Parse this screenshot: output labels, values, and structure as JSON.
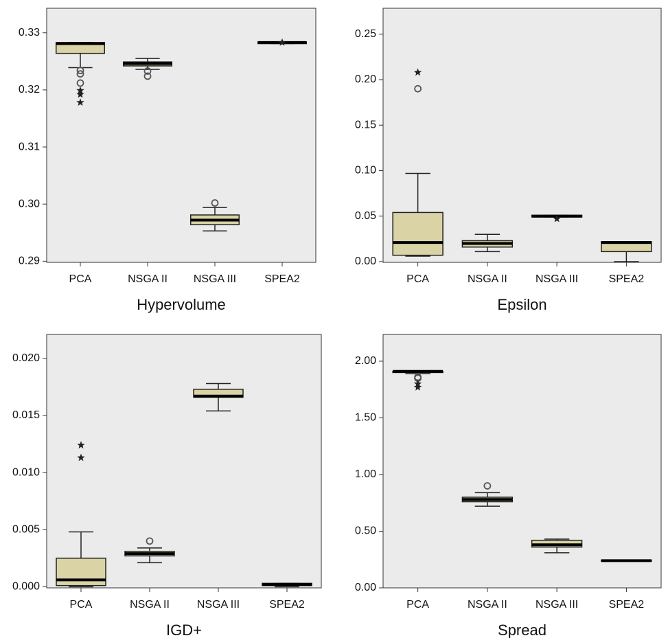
{
  "chart_data": [
    {
      "type": "box",
      "xlabel": "Hypervolume",
      "categories": [
        "PCA",
        "NSGA II",
        "NSGA III",
        "SPEA2"
      ],
      "color": "#d9d3a6",
      "ylim": [
        0.2898,
        0.3343
      ],
      "yticks": [
        0.29,
        {
          "value": 0.3,
          "label": "0.30"
        },
        0.31,
        0.32,
        0.33
      ],
      "boxes": [
        {
          "min": 0.3239,
          "q1": 0.3264,
          "median": 0.3281,
          "q3": 0.3283,
          "max": 0.3283,
          "outliers": [
            0.3234,
            0.3228,
            0.3212
          ],
          "extremes": [
            0.3199,
            0.3192,
            0.3178
          ]
        },
        {
          "min": 0.3236,
          "q1": 0.3242,
          "median": 0.3246,
          "q3": 0.3249,
          "max": 0.3255,
          "outliers": [
            0.3233,
            0.3224
          ]
        },
        {
          "min": 0.2953,
          "q1": 0.2964,
          "median": 0.2972,
          "q3": 0.2981,
          "max": 0.2994,
          "outliers": [
            0.3002
          ]
        },
        {
          "min": 0.3281,
          "q1": 0.3281,
          "median": 0.3283,
          "q3": 0.3284,
          "max": 0.3284,
          "extremes": [
            0.3283
          ]
        }
      ]
    },
    {
      "type": "box",
      "xlabel": "Epsilon",
      "categories": [
        "PCA",
        "NSGA II",
        "NSGA III",
        "SPEA2"
      ],
      "color": "#d9d3a6",
      "ylim": [
        -0.0008,
        0.2785
      ],
      "yticks": [
        {
          "value": 0,
          "label": "0.00"
        },
        0.05,
        {
          "value": 0.1,
          "label": "0.10"
        },
        0.15,
        {
          "value": 0.2,
          "label": "0.20"
        },
        0.25
      ],
      "boxes": [
        {
          "min": 0.006,
          "q1": 0.007,
          "median": 0.021,
          "q3": 0.054,
          "max": 0.097,
          "outliers": [
            0.19
          ],
          "extremes": [
            0.208
          ]
        },
        {
          "min": 0.011,
          "q1": 0.016,
          "median": 0.02,
          "q3": 0.023,
          "max": 0.03
        },
        {
          "min": 0.049,
          "q1": 0.049,
          "median": 0.05,
          "q3": 0.051,
          "max": 0.051,
          "extremes": [
            0.047
          ]
        },
        {
          "min": 0,
          "q1": 0.011,
          "median": 0.021,
          "q3": 0.022,
          "max": 0.022
        }
      ]
    },
    {
      "type": "box",
      "xlabel": "IGD+",
      "categories": [
        "PCA",
        "NSGA II",
        "NSGA III",
        "SPEA2"
      ],
      "color": "#d9d3a6",
      "ylim": [
        -0.0001,
        0.0221
      ],
      "yticks": [
        {
          "value": 0,
          "label": "0.000"
        },
        {
          "value": 0.005,
          "label": "0.005"
        },
        {
          "value": 0.01,
          "label": "0.010"
        },
        {
          "value": 0.015,
          "label": "0.015"
        },
        {
          "value": 0.02,
          "label": "0.020"
        }
      ],
      "boxes": [
        {
          "min": 0,
          "q1": 0.0001,
          "median": 0.0006,
          "q3": 0.0025,
          "max": 0.0048,
          "extremes": [
            0.0124,
            0.0113
          ]
        },
        {
          "min": 0.0021,
          "q1": 0.0027,
          "median": 0.0029,
          "q3": 0.0031,
          "max": 0.0034,
          "outliers": [
            0.004
          ]
        },
        {
          "min": 0.0154,
          "q1": 0.0166,
          "median": 0.0167,
          "q3": 0.0173,
          "max": 0.0178
        },
        {
          "min": 0,
          "q1": 0.0001,
          "median": 0.0002,
          "q3": 0.0003,
          "max": 0.0003
        }
      ]
    },
    {
      "type": "box",
      "xlabel": "Spread",
      "categories": [
        "PCA",
        "NSGA II",
        "NSGA III",
        "SPEA2"
      ],
      "color": "#d9d3a6",
      "ylim": [
        0,
        2.236
      ],
      "yticks": [
        {
          "value": 0,
          "label": "0.00"
        },
        {
          "value": 0.5,
          "label": "0.50"
        },
        {
          "value": 1,
          "label": "1.00"
        },
        {
          "value": 1.5,
          "label": "1.50"
        },
        {
          "value": 2,
          "label": "2.00"
        }
      ],
      "boxes": [
        {
          "min": 1.89,
          "q1": 1.9,
          "median": 1.91,
          "q3": 1.91,
          "max": 1.91,
          "outliers": [
            1.86,
            1.85
          ],
          "extremes": [
            1.8,
            1.77
          ]
        },
        {
          "min": 0.72,
          "q1": 0.76,
          "median": 0.78,
          "q3": 0.8,
          "max": 0.84,
          "outliers": [
            0.9
          ]
        },
        {
          "min": 0.31,
          "q1": 0.36,
          "median": 0.38,
          "q3": 0.42,
          "max": 0.43
        },
        {
          "min": 0.235,
          "q1": 0.235,
          "median": 0.24,
          "q3": 0.245,
          "max": 0.245
        }
      ]
    }
  ]
}
